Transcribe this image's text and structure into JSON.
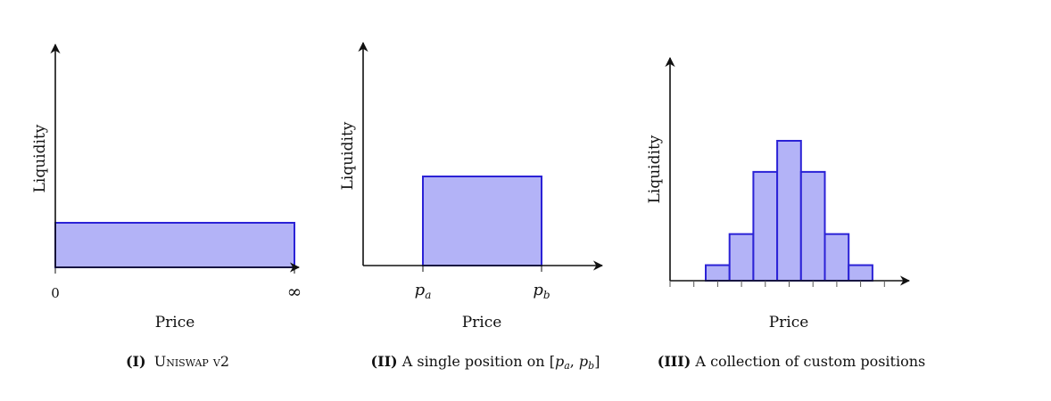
{
  "panels": [
    {
      "ylabel": "Liquidity",
      "xlabel": "Price",
      "tick_left": "0",
      "tick_right": "∞",
      "caption_num": "(I)",
      "caption_sc": "Uniswap",
      "caption_rest": " v2"
    },
    {
      "ylabel": "Liquidity",
      "xlabel": "Price",
      "tick_a_base": "p",
      "tick_a_sub": "a",
      "tick_b_base": "p",
      "tick_b_sub": "b",
      "caption_num": "(II)",
      "caption_text": " A single position on [",
      "caption_pa": "p",
      "caption_pa_sub": "a",
      "caption_sep": ", ",
      "caption_pb": "p",
      "caption_pb_sub": "b",
      "caption_close": "]"
    },
    {
      "ylabel": "Liquidity",
      "xlabel": "Price",
      "caption_num": "(III)",
      "caption_text": " A collection of custom positions"
    }
  ],
  "colors": {
    "fill": "#b3b3f7",
    "stroke": "#2b22d6",
    "axis": "#111111"
  },
  "chart_data": [
    {
      "type": "bar",
      "series": [
        {
          "values": [
            1
          ]
        }
      ]
    },
    {
      "type": "bar",
      "series": [
        {
          "values": [
            1
          ]
        }
      ]
    },
    {
      "type": "bar",
      "series": [
        {
          "values": [
            1,
            3,
            7,
            9,
            7,
            3,
            1
          ]
        }
      ]
    }
  ]
}
